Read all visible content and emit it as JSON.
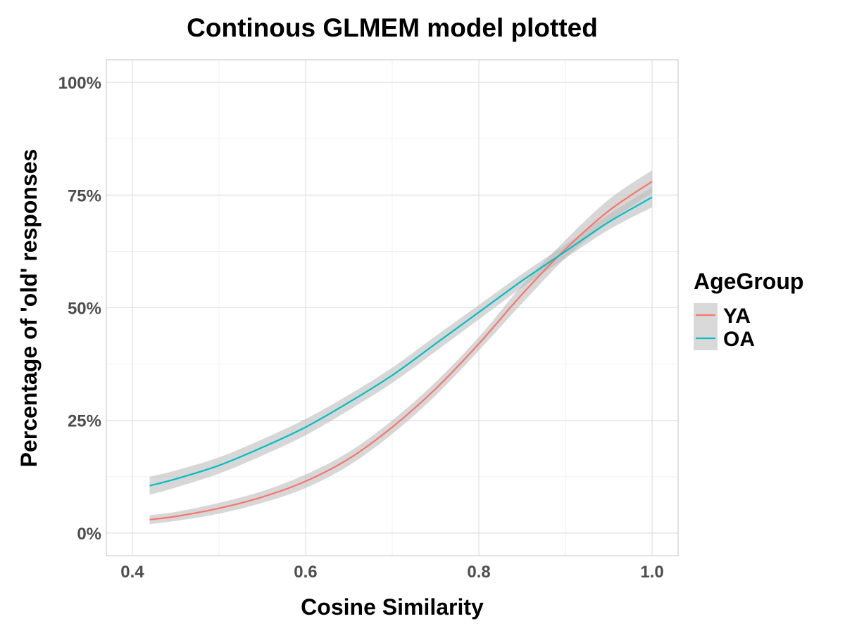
{
  "chart_data": {
    "type": "line",
    "title": "Continous GLMEM model plotted",
    "xlabel": "Cosine Similarity",
    "ylabel": "Percentage of 'old' responses",
    "xlim": [
      0.37,
      1.03
    ],
    "ylim": [
      -0.05,
      1.05
    ],
    "x_ticks": [
      0.4,
      0.6,
      0.8,
      1.0
    ],
    "x_tick_labels": [
      "0.4",
      "0.6",
      "0.8",
      "1.0"
    ],
    "y_ticks": [
      0,
      0.25,
      0.5,
      0.75,
      1.0
    ],
    "y_tick_labels": [
      "0%",
      "25%",
      "50%",
      "75%",
      "100%"
    ],
    "grid": true,
    "legend": {
      "title": "AgeGroup",
      "position": "right"
    },
    "confidence_band_color": "#bdbdbd",
    "x": [
      0.42,
      0.45,
      0.5,
      0.55,
      0.6,
      0.65,
      0.7,
      0.75,
      0.8,
      0.85,
      0.9,
      0.95,
      1.0
    ],
    "series": [
      {
        "name": "YA",
        "color": "#F8766D",
        "values": [
          0.03,
          0.037,
          0.055,
          0.08,
          0.115,
          0.165,
          0.235,
          0.32,
          0.42,
          0.53,
          0.63,
          0.715,
          0.78
        ],
        "lower": [
          0.02,
          0.027,
          0.043,
          0.067,
          0.1,
          0.15,
          0.22,
          0.305,
          0.405,
          0.51,
          0.61,
          0.69,
          0.755
        ],
        "upper": [
          0.04,
          0.047,
          0.067,
          0.093,
          0.13,
          0.18,
          0.25,
          0.335,
          0.435,
          0.55,
          0.65,
          0.74,
          0.805
        ]
      },
      {
        "name": "OA",
        "color": "#00BFC4",
        "values": [
          0.105,
          0.12,
          0.15,
          0.19,
          0.235,
          0.29,
          0.35,
          0.42,
          0.49,
          0.56,
          0.625,
          0.69,
          0.745
        ],
        "lower": [
          0.085,
          0.101,
          0.132,
          0.172,
          0.217,
          0.273,
          0.333,
          0.403,
          0.474,
          0.545,
          0.61,
          0.673,
          0.723
        ],
        "upper": [
          0.125,
          0.139,
          0.168,
          0.208,
          0.253,
          0.307,
          0.367,
          0.437,
          0.506,
          0.575,
          0.64,
          0.707,
          0.767
        ]
      }
    ]
  }
}
